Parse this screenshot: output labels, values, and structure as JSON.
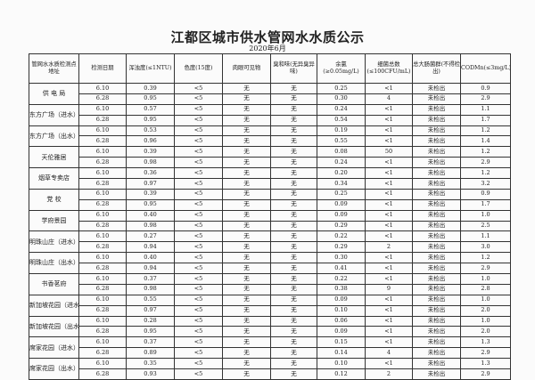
{
  "title": "江都区城市供水管网水水质公示",
  "subtitle": "2020年6月",
  "columns": [
    "管网水水质检测点地址",
    "检测日期",
    "浑浊度(≤1NTU)",
    "色度(15度)",
    "肉眼可见物",
    "臭和味(无异臭异味)",
    "余氯(≥0.05mg/L)",
    "细菌总数(≤100CFU/mL)",
    "总大肠菌群(不得检出)",
    "CODMn(≤3mg/L)"
  ],
  "sites": [
    {
      "name": "供 电 局",
      "rows": [
        [
          "6.10",
          "0.39",
          "<5",
          "无",
          "无",
          "0.25",
          "<1",
          "未检出",
          "0.9"
        ],
        [
          "6.28",
          "0.95",
          "<5",
          "无",
          "无",
          "0.30",
          "4",
          "未检出",
          "2.9"
        ]
      ]
    },
    {
      "name": "东方广场（进水）",
      "rows": [
        [
          "6.10",
          "0.57",
          "<5",
          "无",
          "无",
          "0.24",
          "<1",
          "未检出",
          "1.1"
        ],
        [
          "6.28",
          "0.95",
          "<5",
          "无",
          "无",
          "0.54",
          "<1",
          "未检出",
          "1.7"
        ]
      ]
    },
    {
      "name": "东方广场（出水）",
      "rows": [
        [
          "6.10",
          "0.53",
          "<5",
          "无",
          "无",
          "0.19",
          "<1",
          "未检出",
          "1.2"
        ],
        [
          "6.28",
          "0.96",
          "<5",
          "无",
          "无",
          "0.55",
          "<1",
          "未检出",
          "1.4"
        ]
      ]
    },
    {
      "name": "天伦雅居",
      "rows": [
        [
          "6.10",
          "0.39",
          "<5",
          "无",
          "无",
          "0.08",
          "50",
          "未检出",
          "1.2"
        ],
        [
          "6.28",
          "0.98",
          "<5",
          "无",
          "无",
          "0.24",
          "<1",
          "未检出",
          "2.9"
        ]
      ]
    },
    {
      "name": "烟草专卖店",
      "rows": [
        [
          "6.10",
          "0.36",
          "<5",
          "无",
          "无",
          "0.20",
          "<1",
          "未检出",
          "1.2"
        ],
        [
          "6.28",
          "0.97",
          "<5",
          "无",
          "无",
          "0.34",
          "<1",
          "未检出",
          "3.2"
        ]
      ]
    },
    {
      "name": "党 校",
      "rows": [
        [
          "6.10",
          "0.39",
          "<5",
          "无",
          "无",
          "0.25",
          "<1",
          "未检出",
          "0.9"
        ],
        [
          "6.28",
          "0.95",
          "<5",
          "无",
          "无",
          "0.09",
          "<1",
          "未检出",
          "1.7"
        ]
      ]
    },
    {
      "name": "学府景园",
      "rows": [
        [
          "6.10",
          "0.40",
          "<5",
          "无",
          "无",
          "0.09",
          "<1",
          "未检出",
          "1.0"
        ],
        [
          "6.28",
          "0.98",
          "<5",
          "无",
          "无",
          "0.29",
          "<1",
          "未检出",
          "2.5"
        ]
      ]
    },
    {
      "name": "明珠山庄（进水）",
      "rows": [
        [
          "6.10",
          "0.27",
          "<5",
          "无",
          "无",
          "0.22",
          "<1",
          "未检出",
          "1.1"
        ],
        [
          "6.28",
          "0.94",
          "<5",
          "无",
          "无",
          "0.29",
          "2",
          "未检出",
          "3.0"
        ]
      ]
    },
    {
      "name": "明珠山庄（出水）",
      "rows": [
        [
          "6.10",
          "0.40",
          "<5",
          "无",
          "无",
          "0.30",
          "<1",
          "未检出",
          "1.2"
        ],
        [
          "6.28",
          "0.94",
          "<5",
          "无",
          "无",
          "0.41",
          "<1",
          "未检出",
          "2.9"
        ]
      ]
    },
    {
      "name": "书香茗府",
      "rows": [
        [
          "6.10",
          "0.37",
          "<5",
          "无",
          "无",
          "0.22",
          "<1",
          "未检出",
          "1.0"
        ],
        [
          "6.28",
          "0.98",
          "<5",
          "无",
          "无",
          "0.38",
          "9",
          "未检出",
          "2.8"
        ]
      ]
    },
    {
      "name": "新加坡花园（进水）",
      "rows": [
        [
          "6.10",
          "0.55",
          "<5",
          "无",
          "无",
          "0.09",
          "<1",
          "未检出",
          "1.0"
        ],
        [
          "6.28",
          "0.97",
          "<5",
          "无",
          "无",
          "0.10",
          "<1",
          "未检出",
          "2.0"
        ]
      ]
    },
    {
      "name": "新加坡花园（出水）",
      "rows": [
        [
          "6.10",
          "0.28",
          "<5",
          "无",
          "无",
          "0.06",
          "<1",
          "未检出",
          "1.0"
        ],
        [
          "6.28",
          "0.95",
          "<5",
          "无",
          "无",
          "0.09",
          "<1",
          "未检出",
          "2.0"
        ]
      ]
    },
    {
      "name": "席家花园（进水）",
      "rows": [
        [
          "6.10",
          "0.37",
          "<5",
          "无",
          "无",
          "0.15",
          "<1",
          "未检出",
          "1.3"
        ],
        [
          "6.28",
          "0.89",
          "<5",
          "无",
          "无",
          "0.14",
          "4",
          "未检出",
          "2.9"
        ]
      ]
    },
    {
      "name": "席家花园（出水）",
      "rows": [
        [
          "6.10",
          "0.35",
          "<5",
          "无",
          "无",
          "0.10",
          "<1",
          "未检出",
          "1.3"
        ],
        [
          "6.28",
          "0.93",
          "<5",
          "无",
          "无",
          "0.12",
          "2",
          "未检出",
          "2.9"
        ]
      ]
    }
  ]
}
